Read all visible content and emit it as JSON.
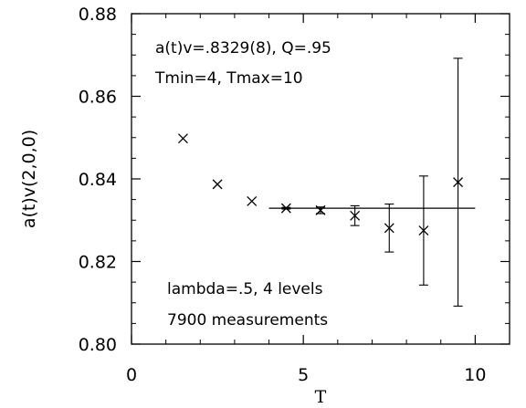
{
  "chart_data": {
    "type": "scatter",
    "xlabel": "T",
    "ylabel": "a(t)v(2,0,0)",
    "xlim": [
      0,
      11
    ],
    "ylim": [
      0.8,
      0.88
    ],
    "x_ticks": [
      0,
      5,
      10
    ],
    "x_tick_labels": [
      "0",
      "5",
      "10"
    ],
    "y_ticks": [
      0.8,
      0.82,
      0.84,
      0.86,
      0.88
    ],
    "y_tick_labels": [
      "0.80",
      "0.82",
      "0.84",
      "0.86",
      "0.88"
    ],
    "grid": false,
    "marker": "x",
    "points": [
      {
        "x": 1.5,
        "y": 0.8498,
        "err": 0.0
      },
      {
        "x": 2.5,
        "y": 0.8387,
        "err": 0.0
      },
      {
        "x": 3.5,
        "y": 0.8346,
        "err": 0.0
      },
      {
        "x": 4.5,
        "y": 0.8329,
        "err": 0.0002
      },
      {
        "x": 5.5,
        "y": 0.8324,
        "err": 0.0008
      },
      {
        "x": 6.5,
        "y": 0.8311,
        "err": 0.0024
      },
      {
        "x": 7.5,
        "y": 0.8281,
        "err": 0.0058
      },
      {
        "x": 8.5,
        "y": 0.8275,
        "err": 0.0132
      },
      {
        "x": 9.5,
        "y": 0.8392,
        "err": 0.03
      }
    ],
    "fit_line": {
      "x_start": 4,
      "x_end": 10,
      "y": 0.8329
    },
    "annotations": [
      "a(t)v=.8329(8), Q=.95",
      "Tmin=4, Tmax=10",
      "lambda=.5, 4 levels",
      "7900 measurements"
    ]
  }
}
